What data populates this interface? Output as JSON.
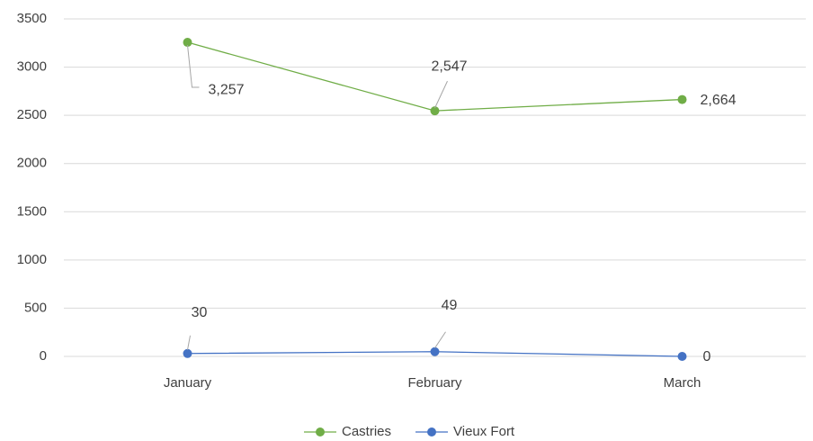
{
  "chart_data": {
    "type": "line",
    "categories": [
      "January",
      "February",
      "March"
    ],
    "series": [
      {
        "name": "Castries",
        "color": "#70ad47",
        "values": [
          3257,
          2547,
          2664
        ],
        "value_labels": [
          "3,257",
          "2,547",
          "2,664"
        ]
      },
      {
        "name": "Vieux Fort",
        "color": "#4472c4",
        "values": [
          30,
          49,
          0
        ]
      }
    ],
    "ylim": [
      0,
      3500
    ],
    "yticks": [
      0,
      500,
      1000,
      1500,
      2000,
      2500,
      3000,
      3500
    ],
    "grid": true,
    "legend": "bottom"
  }
}
